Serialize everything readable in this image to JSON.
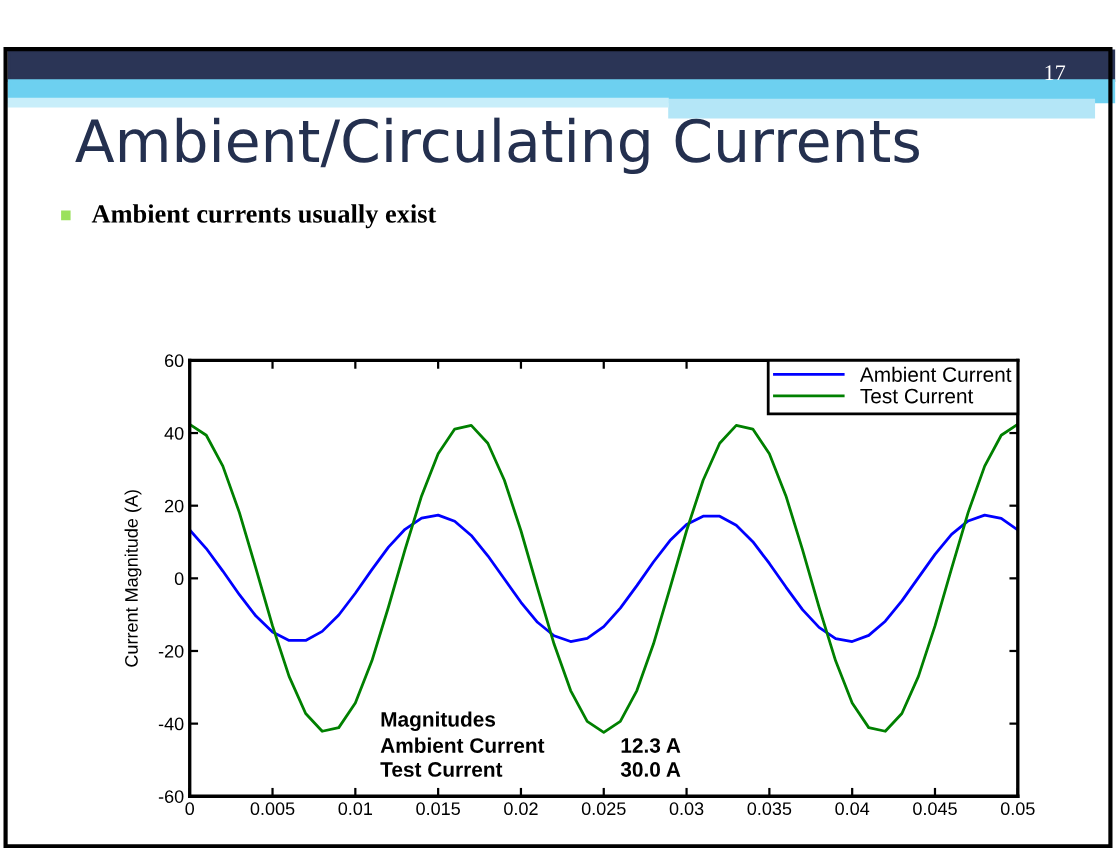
{
  "chart_data": {
    "type": "line",
    "title": "Ambient/Circulating Currents",
    "subtitle": "Ambient currents usually exist",
    "ylabel": "Current Magnitude (A)",
    "annotations": [
      "17",
      "Magnitudes",
      "Ambient Current",
      "12.3 A",
      "Test Current",
      "30.0 A"
    ],
    "x": [
      0,
      0.001,
      0.002,
      0.003,
      0.004,
      0.005,
      0.006,
      0.007,
      0.008,
      0.009,
      0.01,
      0.011,
      0.012,
      0.013,
      0.014,
      0.015,
      0.016,
      0.017,
      0.018,
      0.019,
      0.02,
      0.021,
      0.022,
      0.023,
      0.024,
      0.025,
      0.026,
      0.027,
      0.028,
      0.029,
      0.03,
      0.031,
      0.032,
      0.033,
      0.034,
      0.035,
      0.036,
      0.037,
      0.038,
      0.039,
      0.04,
      0.041,
      0.042,
      0.043,
      0.044,
      0.045,
      0.046,
      0.047,
      0.048,
      0.049,
      0.05
    ],
    "series": [
      {
        "name": "Ambient Current",
        "color": "#0000ff",
        "values": [
          13.3,
          8.2,
          2.0,
          -4.5,
          -10.4,
          -14.8,
          -17.1,
          -17.1,
          -14.6,
          -10.1,
          -4.1,
          2.4,
          8.6,
          13.5,
          16.6,
          17.4,
          15.7,
          11.8,
          6.2,
          -0.2,
          -6.6,
          -12.1,
          -15.8,
          -17.4,
          -16.5,
          -13.3,
          -8.2,
          -2.0,
          4.5,
          10.4,
          14.8,
          17.1,
          17.1,
          14.6,
          10.1,
          4.1,
          -2.4,
          -8.6,
          -13.5,
          -16.6,
          -17.4,
          -15.7,
          -11.8,
          -6.2,
          0.2,
          6.6,
          12.1,
          15.8,
          17.4,
          16.5,
          13.3
        ]
      },
      {
        "name": "Test Current",
        "color": "#008000",
        "values": [
          42.4,
          39.4,
          30.9,
          18.1,
          2.7,
          -13.1,
          -27.0,
          -37.2,
          -42.1,
          -41.1,
          -34.3,
          -22.7,
          -7.9,
          7.9,
          22.7,
          34.3,
          41.1,
          42.1,
          37.2,
          27.0,
          13.1,
          -2.7,
          -18.1,
          -30.9,
          -39.4,
          -42.4,
          -39.4,
          -30.9,
          -18.1,
          -2.7,
          13.1,
          27.0,
          37.2,
          42.1,
          41.1,
          34.3,
          22.7,
          7.9,
          -7.9,
          -22.7,
          -34.3,
          -41.1,
          -42.1,
          -37.2,
          -27.0,
          -13.1,
          2.7,
          18.1,
          30.9,
          39.4,
          42.4
        ]
      }
    ],
    "xlim": [
      0,
      0.05
    ],
    "xticks": [
      0,
      0.005,
      0.01,
      0.015,
      0.02,
      0.025,
      0.03,
      0.035,
      0.04,
      0.045,
      0.05
    ],
    "ylim": [
      -60,
      60
    ],
    "yticks": [
      -60,
      -40,
      -20,
      0,
      20,
      40,
      60
    ],
    "grid": false,
    "legend": "top right",
    "marker": "none",
    "line_style": "solid"
  }
}
